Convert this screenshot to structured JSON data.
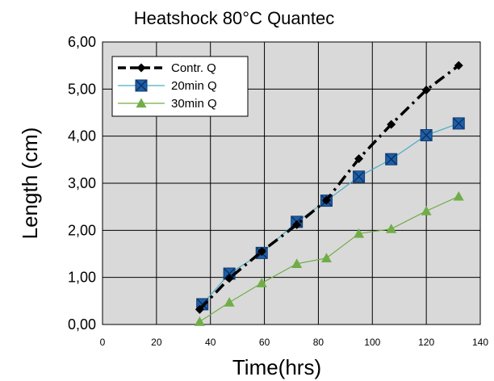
{
  "chart_data": {
    "type": "line",
    "title": "Heatshock 80°C Quantec",
    "xlabel": "Time(hrs)",
    "ylabel": "Length (cm)",
    "xlim": [
      0,
      140
    ],
    "ylim": [
      0,
      6
    ],
    "x_ticks": [
      0,
      20,
      40,
      60,
      80,
      100,
      120,
      140
    ],
    "x_tick_labels": [
      "0",
      "20",
      "40",
      "60",
      "80",
      "100",
      "120",
      "140"
    ],
    "y_ticks": [
      0,
      1,
      2,
      3,
      4,
      5,
      6
    ],
    "y_tick_labels": [
      "0,00",
      "1,00",
      "2,00",
      "3,00",
      "4,00",
      "5,00",
      "6,00"
    ],
    "grid": true,
    "plot_background": "#d9d9d9",
    "legend_position": "top-left",
    "series": [
      {
        "name": "Contr. Q",
        "color": "#000000",
        "line_style": "dash-dot",
        "marker": "diamond",
        "x": [
          36,
          47,
          59,
          72,
          83,
          95,
          107,
          120,
          132
        ],
        "y": [
          0.32,
          0.98,
          1.55,
          2.12,
          2.64,
          3.52,
          4.25,
          4.98,
          5.5
        ]
      },
      {
        "name": "20min Q",
        "color": "#4bacc6",
        "marker_color": "#1f5fa8",
        "line_style": "solid",
        "marker": "square-x",
        "x": [
          37,
          47,
          59,
          72,
          83,
          95,
          107,
          120,
          132
        ],
        "y": [
          0.43,
          1.08,
          1.52,
          2.18,
          2.63,
          3.14,
          3.51,
          4.02,
          4.27
        ]
      },
      {
        "name": "30min Q",
        "color": "#70ad47",
        "marker_color": "#70ad47",
        "line_style": "solid",
        "marker": "triangle",
        "x": [
          36,
          47,
          59,
          72,
          83,
          95,
          107,
          120,
          132
        ],
        "y": [
          0.06,
          0.47,
          0.88,
          1.29,
          1.41,
          1.93,
          2.03,
          2.41,
          2.72
        ]
      }
    ]
  }
}
